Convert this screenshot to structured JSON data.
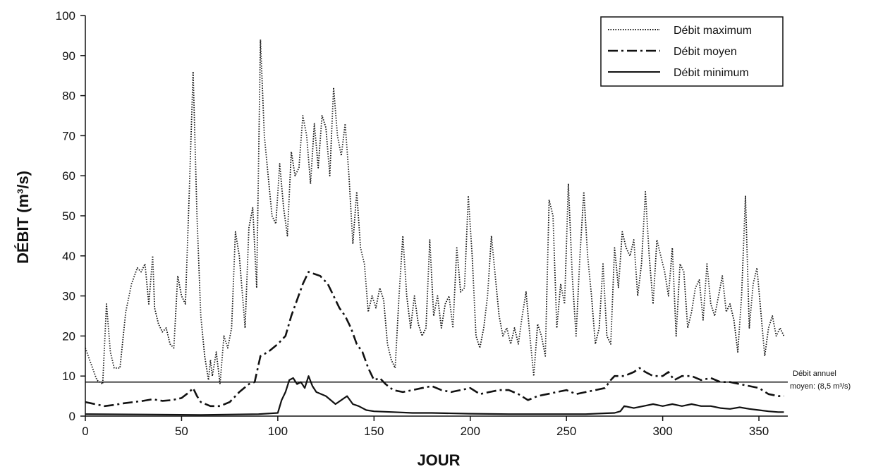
{
  "chart_data": {
    "type": "line",
    "title": "",
    "xlabel": "JOUR",
    "ylabel": "DÉBIT (m³/s)",
    "xlim": [
      0,
      365
    ],
    "ylim": [
      0,
      100
    ],
    "x_ticks": [
      0,
      50,
      100,
      150,
      200,
      250,
      300,
      350
    ],
    "y_ticks": [
      0,
      10,
      20,
      30,
      40,
      50,
      60,
      70,
      80,
      90,
      100
    ],
    "grid": false,
    "legend_position": "top-right",
    "reference_line": {
      "value": 8.5,
      "label_line1": "Débit annuel",
      "label_line2": "moyen: (8,5 m³/s)"
    },
    "series": [
      {
        "name": "Débit maximum",
        "style": "dotted",
        "color": "#111111",
        "points": [
          [
            0,
            17
          ],
          [
            3,
            13
          ],
          [
            6,
            9
          ],
          [
            9,
            8
          ],
          [
            11,
            28
          ],
          [
            13,
            16
          ],
          [
            15,
            12
          ],
          [
            18,
            12
          ],
          [
            21,
            26
          ],
          [
            24,
            33
          ],
          [
            27,
            37
          ],
          [
            29,
            36
          ],
          [
            31,
            38
          ],
          [
            33,
            28
          ],
          [
            35,
            40
          ],
          [
            36,
            27
          ],
          [
            38,
            23
          ],
          [
            40,
            21
          ],
          [
            42,
            22
          ],
          [
            44,
            18
          ],
          [
            46,
            17
          ],
          [
            48,
            35
          ],
          [
            50,
            30
          ],
          [
            52,
            28
          ],
          [
            54,
            56
          ],
          [
            56,
            86
          ],
          [
            58,
            50
          ],
          [
            60,
            25
          ],
          [
            62,
            15
          ],
          [
            64,
            9
          ],
          [
            65,
            14
          ],
          [
            66,
            10
          ],
          [
            68,
            16
          ],
          [
            70,
            8
          ],
          [
            72,
            20
          ],
          [
            74,
            17
          ],
          [
            76,
            22
          ],
          [
            78,
            46
          ],
          [
            80,
            40
          ],
          [
            82,
            28
          ],
          [
            83,
            22
          ],
          [
            85,
            47
          ],
          [
            87,
            52
          ],
          [
            89,
            32
          ],
          [
            91,
            94
          ],
          [
            93,
            70
          ],
          [
            95,
            60
          ],
          [
            97,
            50
          ],
          [
            99,
            48
          ],
          [
            101,
            63
          ],
          [
            103,
            52
          ],
          [
            105,
            45
          ],
          [
            107,
            66
          ],
          [
            109,
            60
          ],
          [
            111,
            62
          ],
          [
            113,
            75
          ],
          [
            115,
            70
          ],
          [
            117,
            58
          ],
          [
            119,
            73
          ],
          [
            121,
            62
          ],
          [
            123,
            75
          ],
          [
            125,
            72
          ],
          [
            127,
            60
          ],
          [
            129,
            82
          ],
          [
            131,
            70
          ],
          [
            133,
            65
          ],
          [
            135,
            73
          ],
          [
            137,
            60
          ],
          [
            139,
            43
          ],
          [
            141,
            56
          ],
          [
            143,
            42
          ],
          [
            145,
            38
          ],
          [
            147,
            26
          ],
          [
            149,
            30
          ],
          [
            151,
            27
          ],
          [
            153,
            32
          ],
          [
            155,
            29
          ],
          [
            157,
            18
          ],
          [
            159,
            14
          ],
          [
            161,
            12
          ],
          [
            163,
            30
          ],
          [
            165,
            45
          ],
          [
            167,
            30
          ],
          [
            169,
            22
          ],
          [
            171,
            30
          ],
          [
            173,
            23
          ],
          [
            175,
            20
          ],
          [
            177,
            22
          ],
          [
            179,
            44
          ],
          [
            181,
            25
          ],
          [
            183,
            30
          ],
          [
            185,
            22
          ],
          [
            187,
            28
          ],
          [
            189,
            30
          ],
          [
            191,
            22
          ],
          [
            193,
            42
          ],
          [
            195,
            31
          ],
          [
            197,
            32
          ],
          [
            199,
            55
          ],
          [
            201,
            40
          ],
          [
            203,
            20
          ],
          [
            205,
            17
          ],
          [
            207,
            22
          ],
          [
            209,
            30
          ],
          [
            211,
            45
          ],
          [
            213,
            35
          ],
          [
            215,
            25
          ],
          [
            217,
            20
          ],
          [
            219,
            22
          ],
          [
            221,
            18
          ],
          [
            223,
            22
          ],
          [
            225,
            18
          ],
          [
            227,
            25
          ],
          [
            229,
            31
          ],
          [
            231,
            20
          ],
          [
            233,
            10
          ],
          [
            235,
            23
          ],
          [
            237,
            20
          ],
          [
            239,
            15
          ],
          [
            241,
            54
          ],
          [
            243,
            50
          ],
          [
            245,
            22
          ],
          [
            247,
            33
          ],
          [
            249,
            28
          ],
          [
            251,
            58
          ],
          [
            253,
            35
          ],
          [
            255,
            20
          ],
          [
            257,
            40
          ],
          [
            259,
            56
          ],
          [
            261,
            40
          ],
          [
            263,
            30
          ],
          [
            265,
            18
          ],
          [
            267,
            22
          ],
          [
            269,
            38
          ],
          [
            271,
            20
          ],
          [
            273,
            18
          ],
          [
            275,
            42
          ],
          [
            277,
            32
          ],
          [
            279,
            46
          ],
          [
            281,
            42
          ],
          [
            283,
            40
          ],
          [
            285,
            44
          ],
          [
            287,
            30
          ],
          [
            289,
            38
          ],
          [
            291,
            56
          ],
          [
            293,
            40
          ],
          [
            295,
            28
          ],
          [
            297,
            44
          ],
          [
            299,
            40
          ],
          [
            301,
            36
          ],
          [
            303,
            30
          ],
          [
            305,
            42
          ],
          [
            307,
            20
          ],
          [
            309,
            38
          ],
          [
            311,
            36
          ],
          [
            313,
            22
          ],
          [
            315,
            26
          ],
          [
            317,
            32
          ],
          [
            319,
            34
          ],
          [
            321,
            24
          ],
          [
            323,
            38
          ],
          [
            325,
            28
          ],
          [
            327,
            25
          ],
          [
            329,
            30
          ],
          [
            331,
            35
          ],
          [
            333,
            26
          ],
          [
            335,
            28
          ],
          [
            337,
            24
          ],
          [
            339,
            16
          ],
          [
            341,
            30
          ],
          [
            343,
            55
          ],
          [
            345,
            22
          ],
          [
            347,
            33
          ],
          [
            349,
            37
          ],
          [
            351,
            26
          ],
          [
            353,
            15
          ],
          [
            355,
            22
          ],
          [
            357,
            25
          ],
          [
            359,
            20
          ],
          [
            361,
            22
          ],
          [
            363,
            20
          ]
        ]
      },
      {
        "name": "Débit moyen",
        "style": "dash-dot",
        "color": "#111111",
        "points": [
          [
            0,
            3.5
          ],
          [
            5,
            3
          ],
          [
            10,
            2.5
          ],
          [
            15,
            2.8
          ],
          [
            20,
            3.2
          ],
          [
            25,
            3.5
          ],
          [
            30,
            3.8
          ],
          [
            35,
            4.2
          ],
          [
            40,
            3.8
          ],
          [
            45,
            4
          ],
          [
            50,
            4.5
          ],
          [
            54,
            6
          ],
          [
            56,
            7
          ],
          [
            58,
            5
          ],
          [
            60,
            3.5
          ],
          [
            65,
            2.5
          ],
          [
            70,
            2.5
          ],
          [
            75,
            3.5
          ],
          [
            80,
            6
          ],
          [
            85,
            8
          ],
          [
            88,
            8.5
          ],
          [
            91,
            15
          ],
          [
            95,
            16
          ],
          [
            100,
            18
          ],
          [
            104,
            20
          ],
          [
            107,
            25
          ],
          [
            110,
            29
          ],
          [
            113,
            33
          ],
          [
            116,
            36
          ],
          [
            119,
            35.5
          ],
          [
            122,
            35
          ],
          [
            126,
            33
          ],
          [
            129,
            30
          ],
          [
            132,
            27
          ],
          [
            135,
            25
          ],
          [
            138,
            22
          ],
          [
            141,
            18
          ],
          [
            144,
            16
          ],
          [
            147,
            12
          ],
          [
            150,
            9
          ],
          [
            153,
            9.5
          ],
          [
            156,
            8
          ],
          [
            160,
            6.5
          ],
          [
            165,
            6
          ],
          [
            170,
            6.5
          ],
          [
            175,
            7
          ],
          [
            180,
            7.5
          ],
          [
            185,
            6.5
          ],
          [
            190,
            6
          ],
          [
            195,
            6.5
          ],
          [
            200,
            7
          ],
          [
            205,
            5.5
          ],
          [
            210,
            6
          ],
          [
            215,
            6.5
          ],
          [
            220,
            6.5
          ],
          [
            225,
            5.5
          ],
          [
            230,
            4
          ],
          [
            235,
            5
          ],
          [
            240,
            5.5
          ],
          [
            245,
            6
          ],
          [
            250,
            6.5
          ],
          [
            255,
            5.5
          ],
          [
            260,
            6
          ],
          [
            265,
            6.5
          ],
          [
            270,
            7
          ],
          [
            273,
            9
          ],
          [
            275,
            10
          ],
          [
            280,
            10
          ],
          [
            285,
            11
          ],
          [
            288,
            12
          ],
          [
            291,
            11
          ],
          [
            295,
            10
          ],
          [
            300,
            10
          ],
          [
            303,
            11
          ],
          [
            306,
            9
          ],
          [
            310,
            10
          ],
          [
            315,
            10
          ],
          [
            320,
            9
          ],
          [
            325,
            9.5
          ],
          [
            330,
            8.5
          ],
          [
            335,
            8.5
          ],
          [
            340,
            8
          ],
          [
            345,
            7.5
          ],
          [
            350,
            7
          ],
          [
            355,
            5.5
          ],
          [
            360,
            5
          ],
          [
            363,
            5
          ]
        ]
      },
      {
        "name": "Débit minimum",
        "style": "solid",
        "color": "#111111",
        "points": [
          [
            0,
            0.5
          ],
          [
            30,
            0.4
          ],
          [
            60,
            0.3
          ],
          [
            90,
            0.5
          ],
          [
            100,
            0.8
          ],
          [
            102,
            4
          ],
          [
            104,
            6
          ],
          [
            106,
            9
          ],
          [
            108,
            9.5
          ],
          [
            110,
            8
          ],
          [
            112,
            8.5
          ],
          [
            114,
            7
          ],
          [
            116,
            10
          ],
          [
            118,
            7.5
          ],
          [
            120,
            6
          ],
          [
            125,
            5
          ],
          [
            130,
            3
          ],
          [
            133,
            4
          ],
          [
            136,
            5
          ],
          [
            139,
            3
          ],
          [
            142,
            2.5
          ],
          [
            146,
            1.5
          ],
          [
            150,
            1.2
          ],
          [
            160,
            1
          ],
          [
            170,
            0.8
          ],
          [
            180,
            0.8
          ],
          [
            200,
            0.6
          ],
          [
            220,
            0.5
          ],
          [
            240,
            0.5
          ],
          [
            260,
            0.5
          ],
          [
            270,
            0.7
          ],
          [
            275,
            0.8
          ],
          [
            278,
            1.2
          ],
          [
            280,
            2.5
          ],
          [
            285,
            2
          ],
          [
            290,
            2.5
          ],
          [
            295,
            3
          ],
          [
            300,
            2.5
          ],
          [
            305,
            3
          ],
          [
            310,
            2.5
          ],
          [
            315,
            3
          ],
          [
            320,
            2.5
          ],
          [
            325,
            2.5
          ],
          [
            330,
            2
          ],
          [
            335,
            1.8
          ],
          [
            340,
            2.2
          ],
          [
            345,
            1.8
          ],
          [
            350,
            1.5
          ],
          [
            355,
            1.2
          ],
          [
            360,
            1
          ],
          [
            363,
            1
          ]
        ]
      }
    ]
  }
}
